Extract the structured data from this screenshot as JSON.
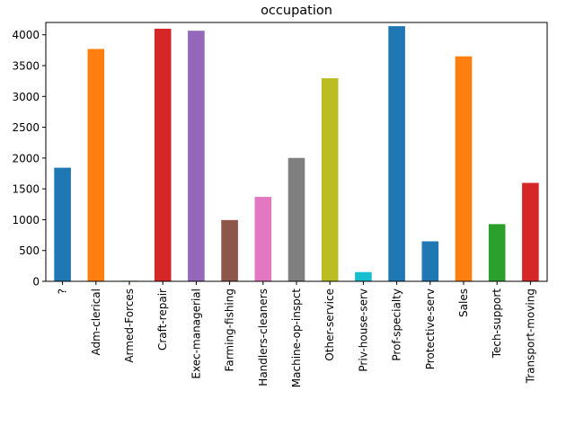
{
  "chart_data": {
    "type": "bar",
    "title": "occupation",
    "xlabel": "",
    "ylabel": "",
    "ylim": [
      0,
      4200
    ],
    "yticks": [
      0,
      500,
      1000,
      1500,
      2000,
      2500,
      3000,
      3500,
      4000
    ],
    "grid": false,
    "categories": [
      "?",
      "Adm-clerical",
      "Armed-Forces",
      "Craft-repair",
      "Exec-managerial",
      "Farming-fishing",
      "Handlers-cleaners",
      "Machine-op-inspct",
      "Other-service",
      "Priv-house-serv",
      "Prof-specialty",
      "Protective-serv",
      "Sales",
      "Tech-support",
      "Transport-moving"
    ],
    "values": [
      1843,
      3770,
      9,
      4099,
      4066,
      994,
      1370,
      2002,
      3295,
      149,
      4140,
      649,
      3650,
      928,
      1597
    ],
    "colors": [
      "#1f77b4",
      "#ff7f0e",
      "#2ca02c",
      "#d62728",
      "#9467bd",
      "#8c564b",
      "#e377c2",
      "#7f7f7f",
      "#bcbd22",
      "#17becf",
      "#1f77b4",
      "#1f77b4",
      "#ff7f0e",
      "#2ca02c",
      "#d62728"
    ]
  }
}
